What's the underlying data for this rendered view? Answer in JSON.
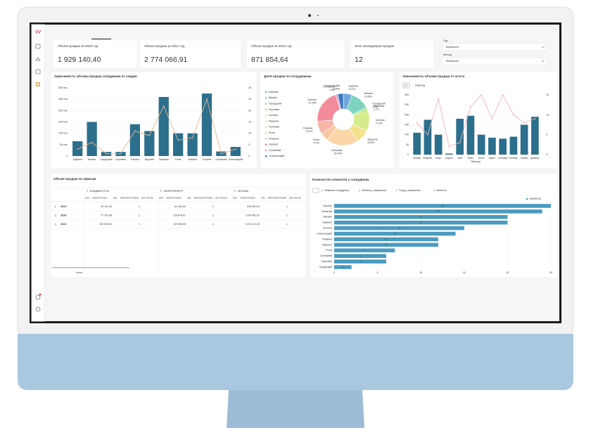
{
  "kpis": [
    {
      "label": "Объем продаж за 2020 год",
      "value": "1 929 140,40"
    },
    {
      "label": "Объем продаж за 2021 год",
      "value": "2 774 066,91"
    },
    {
      "label": "Объем продаж за 2022 год",
      "value": "871 854,64"
    },
    {
      "label": "Штат менеджеров продаж",
      "value": "12"
    }
  ],
  "filters": [
    {
      "label": "Год",
      "placeholder": "Выберите"
    },
    {
      "label": "Месяц",
      "placeholder": "Выберите"
    }
  ],
  "discount_chart": {
    "type": "combo",
    "title": "Зависимость объема продаж сотрудника от скидки",
    "categories": [
      "Баранов",
      "Вахмин",
      "Городецкий",
      "Королёва",
      "Костина",
      "Миронов",
      "Поликова",
      "Рогов",
      "Романов",
      "Сергеев",
      "Соловьева",
      "Топольницкий"
    ],
    "bar_color": "#2b6f8c",
    "line_color": "#f2b48a",
    "bar_values": [
      65000,
      150000,
      18000,
      18000,
      140000,
      110000,
      260000,
      100000,
      100000,
      275000,
      20000,
      40000
    ],
    "line_values": [
      3,
      6,
      1,
      1,
      11,
      9,
      22,
      7,
      8,
      25,
      1,
      3
    ],
    "ylim": [
      0,
      300000
    ],
    "yticks": [
      0,
      {
        "value": 50000,
        "label": "50 тыс"
      },
      {
        "value": 100000,
        "label": "100 тыс"
      },
      {
        "value": 150000,
        "label": "150 тыс"
      },
      {
        "value": 200000,
        "label": "200 тыс"
      },
      {
        "value": 250000,
        "label": "250 тыс"
      },
      {
        "value": 300000,
        "label": "300 тыс"
      }
    ],
    "y2lim": [
      0,
      30
    ],
    "y2ticks": [
      0,
      5,
      10,
      15,
      20,
      25,
      30
    ]
  },
  "share_chart": {
    "type": "pie",
    "title": "Доля продаж по сотрудникам",
    "categories": [
      "Баранов",
      "Вахмин",
      "Городецкий",
      "Королёва",
      "Костина",
      "Миронов",
      "Поликова",
      "Рогов",
      "Романов",
      "Сергеев",
      "Соловьева",
      "Топольницкий"
    ],
    "colors": [
      "#6fa8dc",
      "#7dd3c0",
      "#9fe0a0",
      "#b5e36a",
      "#d6ec8a",
      "#f3e28a",
      "#fbd7a8",
      "#f8c9a0",
      "#f6b6a8",
      "#f28b9a",
      "#e9a0c8",
      "#3a78c2"
    ],
    "values": [
      5.37,
      11.83,
      1.3,
      1.3,
      12.9,
      8.25,
      20.34,
      5.2,
      8.11,
      21.29,
      1.5,
      3.56
    ],
    "value_labels": [
      "5.37%",
      "11.83%",
      "1.3%",
      "1.3%",
      "12.9%",
      "8.25%",
      "20.34%",
      "5.2%",
      "8.11%",
      "21.29%",
      "1.5%",
      "3.56%"
    ]
  },
  "staff_chart": {
    "type": "combo",
    "title": "Зависимость объема продаж от штата",
    "drill_label": "Период",
    "xlabel": "Период",
    "categories": [
      "Январь",
      "Февраль",
      "Март",
      "Апрель",
      "Май",
      "Июнь",
      "Июль",
      "Август",
      "Сентябрь",
      "Октябрь",
      "Ноябрь",
      "Декабрь"
    ],
    "bar_color": "#2b6f8c",
    "line_color": "#f2b4b4",
    "bar_values": [
      110,
      175,
      100,
      5,
      180,
      195,
      100,
      85,
      80,
      90,
      150,
      190
    ],
    "line_values": [
      8,
      5,
      14,
      2,
      3,
      12,
      15,
      9,
      15,
      10,
      8,
      9
    ],
    "ylim": [
      0,
      300
    ],
    "yticks": [
      0,
      50,
      100,
      150,
      200,
      250,
      300
    ],
    "y2lim": [
      0,
      15
    ],
    "y2ticks": [
      0,
      5,
      10,
      15
    ]
  },
  "table": {
    "title": "Объем продаж по офисам",
    "groups": [
      "ВЛАДИВОСТОК",
      "ЕКАТЕРИНБУРГ",
      "МОСКВА"
    ],
    "subheaders": [
      "БЮЛ",
      "ОБЪЕМ ПРОДАЖ",
      "ОКВ",
      "ВАРИАЦИЯ ПРОДАЖ",
      "ДАТА ЗАКАЗА"
    ],
    "rows": [
      {
        "label": "2022",
        "cells": [
          [
            "49 131,45",
            1
          ],
          [
            "81 006,59",
            2
          ],
          [
            "515 351,04",
            1
          ]
        ]
      },
      {
        "label": "2020",
        "cells": [
          [
            "77 701,68",
            1
          ],
          [
            "229 878,87",
            1
          ],
          [
            "1 924 562,67",
            1
          ]
        ]
      },
      {
        "label": "2021",
        "cells": [
          [
            "130 060,94",
            1
          ],
          [
            "149 358,50",
            1
          ],
          [
            "1 674 111,25",
            1
          ]
        ]
      }
    ],
    "total_label": "Итого"
  },
  "clients_chart": {
    "type": "hbar",
    "title": "Количество клиентов у сотрудника",
    "breadcrumbs": [
      "Фамилия сотрудника",
      "Область_справочник",
      "Город_справочник",
      "Клиенты"
    ],
    "legend": "КЛИЕНТЫ",
    "color": "#4a9bbf",
    "categories": [
      "Сергеев",
      "Поликова",
      "Вахмин",
      "Баранов",
      "Костина",
      "Топольницкий",
      "Романов",
      "Миронов",
      "Рогов",
      "Соловьева",
      "Королёва",
      "Городецкий"
    ],
    "values": [
      25,
      24,
      20,
      20,
      15,
      14,
      12,
      12,
      7,
      6,
      6,
      2
    ],
    "xlim": [
      0,
      25
    ],
    "xticks": [
      0,
      5,
      10,
      15,
      20,
      25
    ]
  }
}
